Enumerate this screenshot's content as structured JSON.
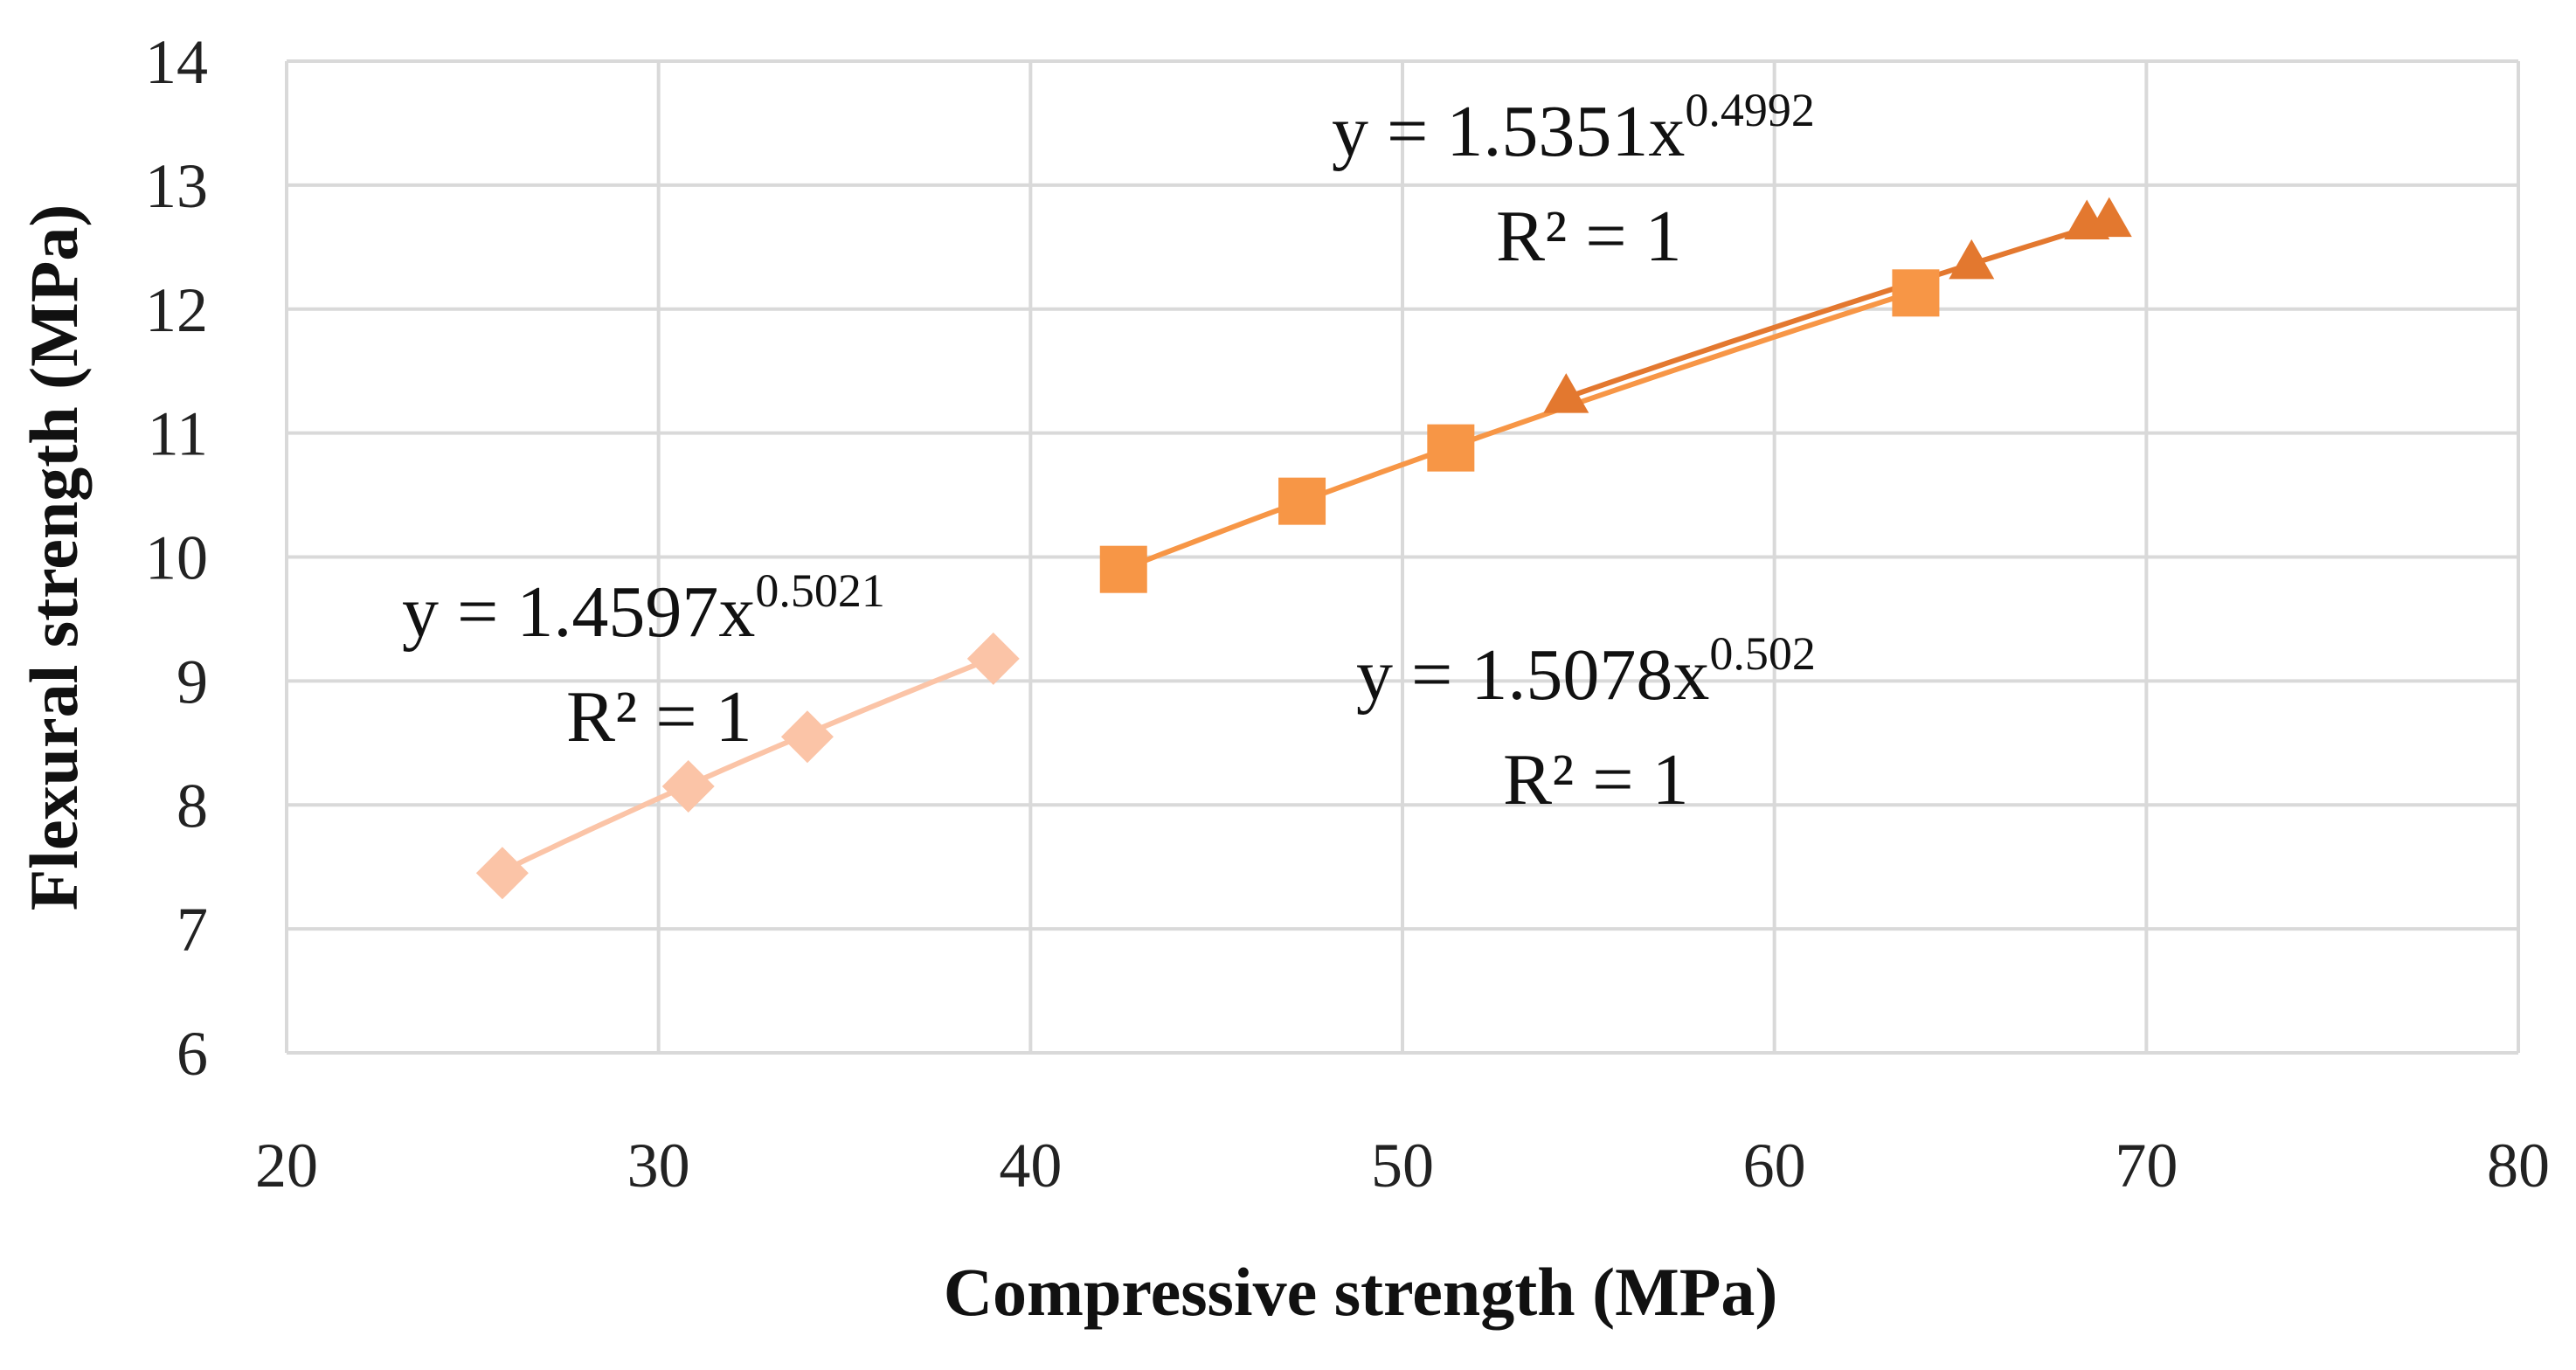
{
  "chart_data": {
    "type": "scatter",
    "title": "",
    "xlabel": "Compressive strength (MPa)",
    "ylabel": "Flexural strength (MPa)",
    "xlim": [
      20,
      80
    ],
    "ylim": [
      6,
      14
    ],
    "xticks": [
      20,
      30,
      40,
      50,
      60,
      70,
      80
    ],
    "yticks": [
      6,
      7,
      8,
      9,
      10,
      11,
      12,
      13,
      14
    ],
    "grid": true,
    "series": [
      {
        "name": "diamond series",
        "marker": "diamond",
        "color": "#FBC4A7",
        "x": [
          25.8,
          30.8,
          34.0,
          39.0
        ],
        "y": [
          7.45,
          8.15,
          8.55,
          9.18
        ],
        "trendline": {
          "coef": 1.4597,
          "exp": 0.5021,
          "x_range": [
            25.8,
            39.0
          ]
        },
        "equation": {
          "prefix": "y = 1.4597x",
          "sup": "0.5021",
          "r2": "R² = 1"
        }
      },
      {
        "name": "square series",
        "marker": "square",
        "color": "#F79646",
        "x": [
          42.5,
          47.3,
          51.3,
          63.8
        ],
        "y": [
          9.9,
          10.45,
          10.88,
          12.13
        ],
        "trendline": {
          "coef": 1.5078,
          "exp": 0.502,
          "x_range": [
            42.5,
            63.8
          ]
        },
        "equation": {
          "prefix": "y = 1.5078x",
          "sup": "0.502",
          "r2": "R² = 1"
        }
      },
      {
        "name": "triangle series",
        "marker": "triangle",
        "color": "#E3782F",
        "x": [
          54.4,
          65.3,
          68.4,
          69.0
        ],
        "y": [
          11.3,
          12.38,
          12.7,
          12.72
        ],
        "trendline": {
          "coef": 1.5351,
          "exp": 0.4992,
          "x_range": [
            54.4,
            69.0
          ]
        },
        "equation": {
          "prefix": "y = 1.5351x",
          "sup": "0.4992",
          "r2": "R² = 1"
        }
      }
    ]
  }
}
